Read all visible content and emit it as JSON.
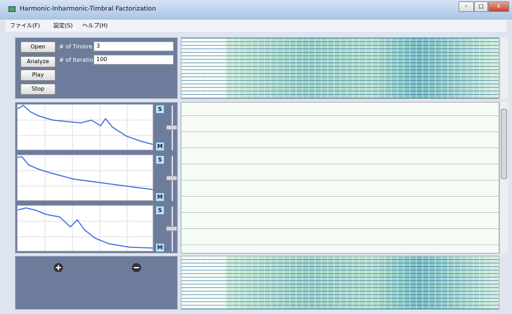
{
  "window": {
    "title": "Harmonic-Inharmonic-Timbral Factorization"
  },
  "menu": [
    "ファイル(F)",
    "設定(S)",
    "ヘルプ(H)"
  ],
  "controls": {
    "buttons": [
      "Open",
      "Analyze",
      "Play",
      "Stop"
    ],
    "fields": [
      {
        "label": "# of Timbre",
        "value": "3"
      },
      {
        "label": "# of Iteration",
        "value": "100"
      }
    ]
  },
  "timbres": [
    {
      "solo": "S",
      "mute": "M"
    },
    {
      "solo": "S",
      "mute": "M"
    },
    {
      "solo": "S",
      "mute": "M"
    }
  ]
}
